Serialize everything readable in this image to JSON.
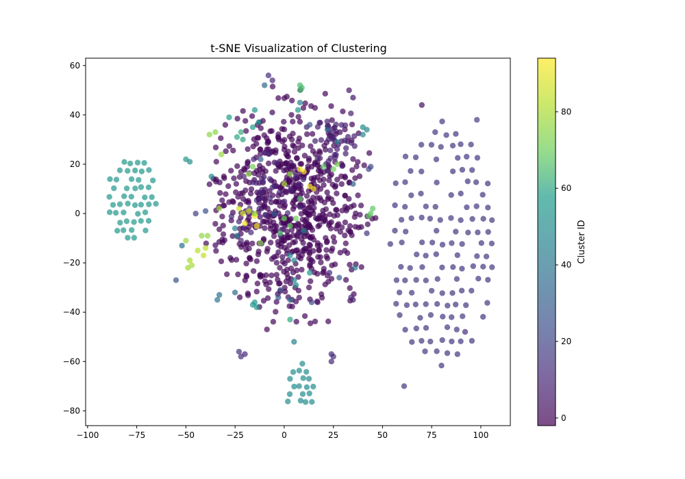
{
  "chart_data": {
    "type": "scatter",
    "title": "t-SNE Visualization of Clustering",
    "xlabel": "",
    "ylabel": "",
    "xlim": [
      -101,
      115
    ],
    "ylim": [
      -86,
      63
    ],
    "xticks": [
      -100,
      -75,
      -50,
      -25,
      0,
      25,
      50,
      75,
      100
    ],
    "yticks": [
      -80,
      -60,
      -40,
      -20,
      0,
      20,
      40,
      60
    ],
    "colorbar": {
      "label": "Cluster ID",
      "range": [
        -2,
        94
      ],
      "ticks": [
        0,
        20,
        40,
        60,
        80
      ],
      "colormap": "viridis"
    },
    "marker_alpha": 0.7,
    "grid": false,
    "clusters": [
      {
        "cluster_id": 55,
        "shape": "hex-grid",
        "center": [
          -78,
          7
        ],
        "spread": [
          13,
          17
        ],
        "spacing": 3.6,
        "density": 0.85,
        "note": "teal cluster, left"
      },
      {
        "cluster_id": 15,
        "shape": "hex-grid",
        "center": [
          80,
          -12
        ],
        "spread": [
          27,
          50
        ],
        "spacing": 5.2,
        "density": 0.8,
        "note": "purple sparse cluster, right"
      },
      {
        "cluster_id": 50,
        "shape": "hex-grid",
        "center": [
          8,
          -70
        ],
        "spread": [
          8,
          10
        ],
        "spacing": 3.2,
        "density": 0.7,
        "note": "teal cluster, bottom"
      },
      {
        "cluster_id": 0,
        "shape": "blob",
        "center": [
          3,
          2
        ],
        "spread": [
          45,
          52
        ],
        "count": 720,
        "note": "dense purple central cloud"
      },
      {
        "cluster_id": 8,
        "shape": "blob",
        "center": [
          25,
          30
        ],
        "spread": [
          15,
          15
        ],
        "count": 40
      },
      {
        "cluster_id": 10,
        "shape": "blob",
        "center": [
          -10,
          5
        ],
        "spread": [
          25,
          25
        ],
        "count": 40
      }
    ],
    "points": [
      {
        "x": 8,
        "y": 52,
        "v": 65
      },
      {
        "x": 8,
        "y": 50,
        "v": 65
      },
      {
        "x": 9,
        "y": 51,
        "v": 65
      },
      {
        "x": 70,
        "y": 44,
        "v": 2
      },
      {
        "x": 44,
        "y": 0,
        "v": 68
      },
      {
        "x": 45,
        "y": 2,
        "v": 68
      },
      {
        "x": 43,
        "y": -1,
        "v": 68
      },
      {
        "x": -38,
        "y": 32,
        "v": 75
      },
      {
        "x": -35,
        "y": 33,
        "v": 75
      },
      {
        "x": -32,
        "y": 24,
        "v": 78
      },
      {
        "x": -23,
        "y": 2,
        "v": 86
      },
      {
        "x": -21,
        "y": 0,
        "v": 86
      },
      {
        "x": -18,
        "y": 1,
        "v": 84
      },
      {
        "x": -15,
        "y": -1,
        "v": 93
      },
      {
        "x": -20,
        "y": -4,
        "v": 92
      },
      {
        "x": -14,
        "y": -5,
        "v": 93
      },
      {
        "x": 8,
        "y": 18,
        "v": 92
      },
      {
        "x": 10,
        "y": 17,
        "v": 93
      },
      {
        "x": 13,
        "y": 11,
        "v": 93
      },
      {
        "x": 15,
        "y": 10,
        "v": 92
      },
      {
        "x": -47,
        "y": -21,
        "v": 80
      },
      {
        "x": -48,
        "y": -19,
        "v": 80
      },
      {
        "x": -49,
        "y": -22,
        "v": 79
      },
      {
        "x": -44,
        "y": -15,
        "v": 82
      },
      {
        "x": -40,
        "y": -14,
        "v": 84
      },
      {
        "x": -41,
        "y": -17,
        "v": 84
      },
      {
        "x": -50,
        "y": -11,
        "v": 78
      },
      {
        "x": -39,
        "y": -9,
        "v": 76
      },
      {
        "x": -42,
        "y": -9,
        "v": 76
      },
      {
        "x": -33,
        "y": 2,
        "v": 78
      },
      {
        "x": -15,
        "y": 0,
        "v": 78
      },
      {
        "x": -12,
        "y": -12,
        "v": 74
      },
      {
        "x": 0,
        "y": -2,
        "v": 70
      },
      {
        "x": 3,
        "y": -5,
        "v": 69
      },
      {
        "x": 6,
        "y": -2,
        "v": 70
      },
      {
        "x": -2,
        "y": -8,
        "v": 66
      },
      {
        "x": 8,
        "y": 6,
        "v": 67
      },
      {
        "x": 20,
        "y": 19,
        "v": 68
      },
      {
        "x": 27,
        "y": 20,
        "v": 72
      },
      {
        "x": 25,
        "y": 18,
        "v": 70
      },
      {
        "x": 0,
        "y": 12,
        "v": 80
      },
      {
        "x": 3,
        "y": 16,
        "v": 75
      },
      {
        "x": -18,
        "y": 16,
        "v": 76
      },
      {
        "x": -16,
        "y": 19,
        "v": 71
      },
      {
        "x": -22,
        "y": 33,
        "v": 62
      },
      {
        "x": -21,
        "y": 30,
        "v": 60
      },
      {
        "x": -24,
        "y": 31,
        "v": 60
      },
      {
        "x": -28,
        "y": 39,
        "v": 58
      },
      {
        "x": -15,
        "y": 42,
        "v": 55
      },
      {
        "x": -13,
        "y": 37,
        "v": 56
      },
      {
        "x": -16,
        "y": 35,
        "v": 58
      },
      {
        "x": -10,
        "y": 52,
        "v": 35
      },
      {
        "x": -8,
        "y": 56,
        "v": 12
      },
      {
        "x": -6,
        "y": 54,
        "v": 10
      },
      {
        "x": 7,
        "y": 42,
        "v": 55
      },
      {
        "x": 8,
        "y": 45,
        "v": 45
      },
      {
        "x": 40,
        "y": 35,
        "v": 50
      },
      {
        "x": 42,
        "y": 34,
        "v": 48
      },
      {
        "x": 40,
        "y": 32,
        "v": 48
      },
      {
        "x": 27,
        "y": 29,
        "v": 44
      },
      {
        "x": 35,
        "y": 47,
        "v": 5
      },
      {
        "x": 33,
        "y": 50,
        "v": 4
      },
      {
        "x": 43,
        "y": 18,
        "v": 20
      },
      {
        "x": 44,
        "y": 19,
        "v": 20
      },
      {
        "x": 35,
        "y": 12,
        "v": 30
      },
      {
        "x": -50,
        "y": 22,
        "v": 55
      },
      {
        "x": -48,
        "y": 21,
        "v": 52
      },
      {
        "x": -52,
        "y": -13,
        "v": 38
      },
      {
        "x": -55,
        "y": -27,
        "v": 25
      },
      {
        "x": -37,
        "y": 15,
        "v": 48
      },
      {
        "x": -40,
        "y": 1,
        "v": 25
      },
      {
        "x": -24,
        "y": -9,
        "v": 42
      },
      {
        "x": -25,
        "y": -6,
        "v": 42
      },
      {
        "x": -34,
        "y": -35,
        "v": 40
      },
      {
        "x": -33,
        "y": -33,
        "v": 38
      },
      {
        "x": -25,
        "y": -32,
        "v": 35
      },
      {
        "x": -15,
        "y": -36,
        "v": 55
      },
      {
        "x": -14,
        "y": -38,
        "v": 57
      },
      {
        "x": -16,
        "y": -37,
        "v": 56
      },
      {
        "x": 3,
        "y": -35,
        "v": 38
      },
      {
        "x": 5,
        "y": -27,
        "v": 48
      },
      {
        "x": 6,
        "y": -29,
        "v": 50
      },
      {
        "x": 3,
        "y": -17,
        "v": 48
      },
      {
        "x": 5,
        "y": -19,
        "v": 46
      },
      {
        "x": 3,
        "y": -43,
        "v": 60
      },
      {
        "x": 5,
        "y": -52,
        "v": 45
      },
      {
        "x": -3,
        "y": -34,
        "v": 28
      },
      {
        "x": -2,
        "y": -31,
        "v": 26
      },
      {
        "x": 13,
        "y": -24,
        "v": 56
      },
      {
        "x": 14,
        "y": -36,
        "v": 22
      },
      {
        "x": 28,
        "y": -26,
        "v": 30
      },
      {
        "x": 36,
        "y": -22,
        "v": 40
      },
      {
        "x": 13,
        "y": 36,
        "v": 28
      },
      {
        "x": 22,
        "y": 34,
        "v": 35
      },
      {
        "x": -5,
        "y": 0,
        "v": 28
      },
      {
        "x": -12,
        "y": 22,
        "v": 30
      },
      {
        "x": 10,
        "y": -7,
        "v": 50
      },
      {
        "x": -45,
        "y": 0,
        "v": 18
      },
      {
        "x": 42,
        "y": -8,
        "v": 15
      },
      {
        "x": -22,
        "y": -58,
        "v": 12
      },
      {
        "x": -20,
        "y": -57,
        "v": 10
      },
      {
        "x": -23,
        "y": -56,
        "v": 12
      },
      {
        "x": 24,
        "y": -57,
        "v": 10
      },
      {
        "x": 25,
        "y": -58,
        "v": 12
      },
      {
        "x": 24,
        "y": -60,
        "v": 10
      },
      {
        "x": 34,
        "y": -34,
        "v": 10
      },
      {
        "x": 35,
        "y": -35,
        "v": 8
      },
      {
        "x": 23,
        "y": -24,
        "v": 10
      },
      {
        "x": 17,
        "y": -36,
        "v": 5
      },
      {
        "x": 61,
        "y": -70,
        "v": 15
      },
      {
        "x": 92,
        "y": -48,
        "v": 12
      },
      {
        "x": 98,
        "y": 38,
        "v": 18
      }
    ]
  }
}
